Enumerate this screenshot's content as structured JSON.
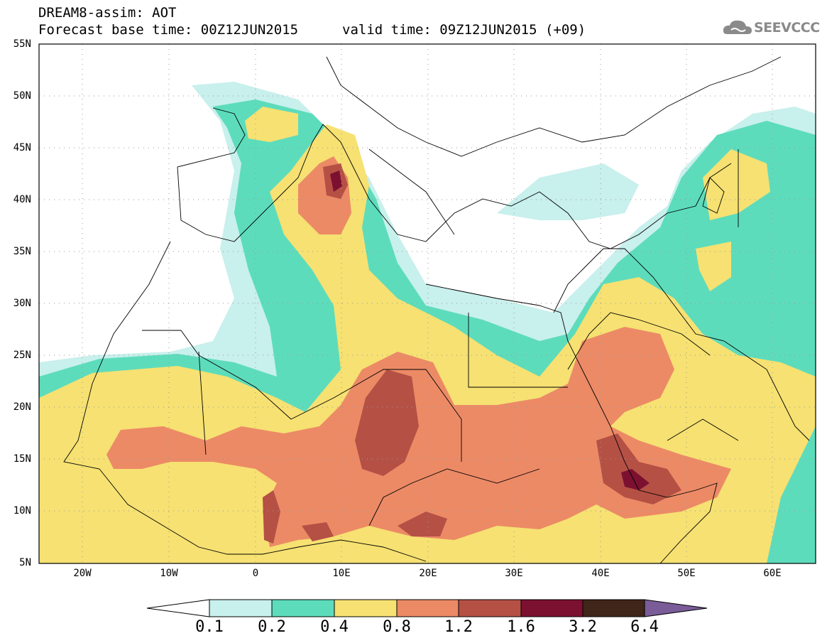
{
  "header": {
    "line1": "DREAM8-assim: AOT",
    "line2": "Forecast base time: 00Z12JUN2015",
    "valid": "valid time: 09Z12JUN2015 (+09)"
  },
  "logo": {
    "text": "SEEVCCC",
    "icon": "cloud-icon",
    "color": "#8a8a8a"
  },
  "map": {
    "variable": "AOT",
    "lon_range": [
      -25,
      65
    ],
    "lat_range": [
      5,
      55
    ],
    "lat_labels": [
      "55N",
      "50N",
      "45N",
      "40N",
      "35N",
      "30N",
      "25N",
      "20N",
      "15N",
      "10N",
      "5N"
    ],
    "lon_labels": [
      "20W",
      "10W",
      "0",
      "10E",
      "20E",
      "30E",
      "40E",
      "50E",
      "60E"
    ],
    "grid": "dotted"
  },
  "colorbar": {
    "labels": [
      "0.1",
      "0.2",
      "0.4",
      "0.8",
      "1.2",
      "1.6",
      "3.2",
      "6.4"
    ],
    "colors": [
      "#ffffff",
      "#c8f0ec",
      "#5ddcbc",
      "#f6e172",
      "#ec8a66",
      "#b55045",
      "#7c1030",
      "#3f2618",
      "#7a5c98"
    ]
  }
}
